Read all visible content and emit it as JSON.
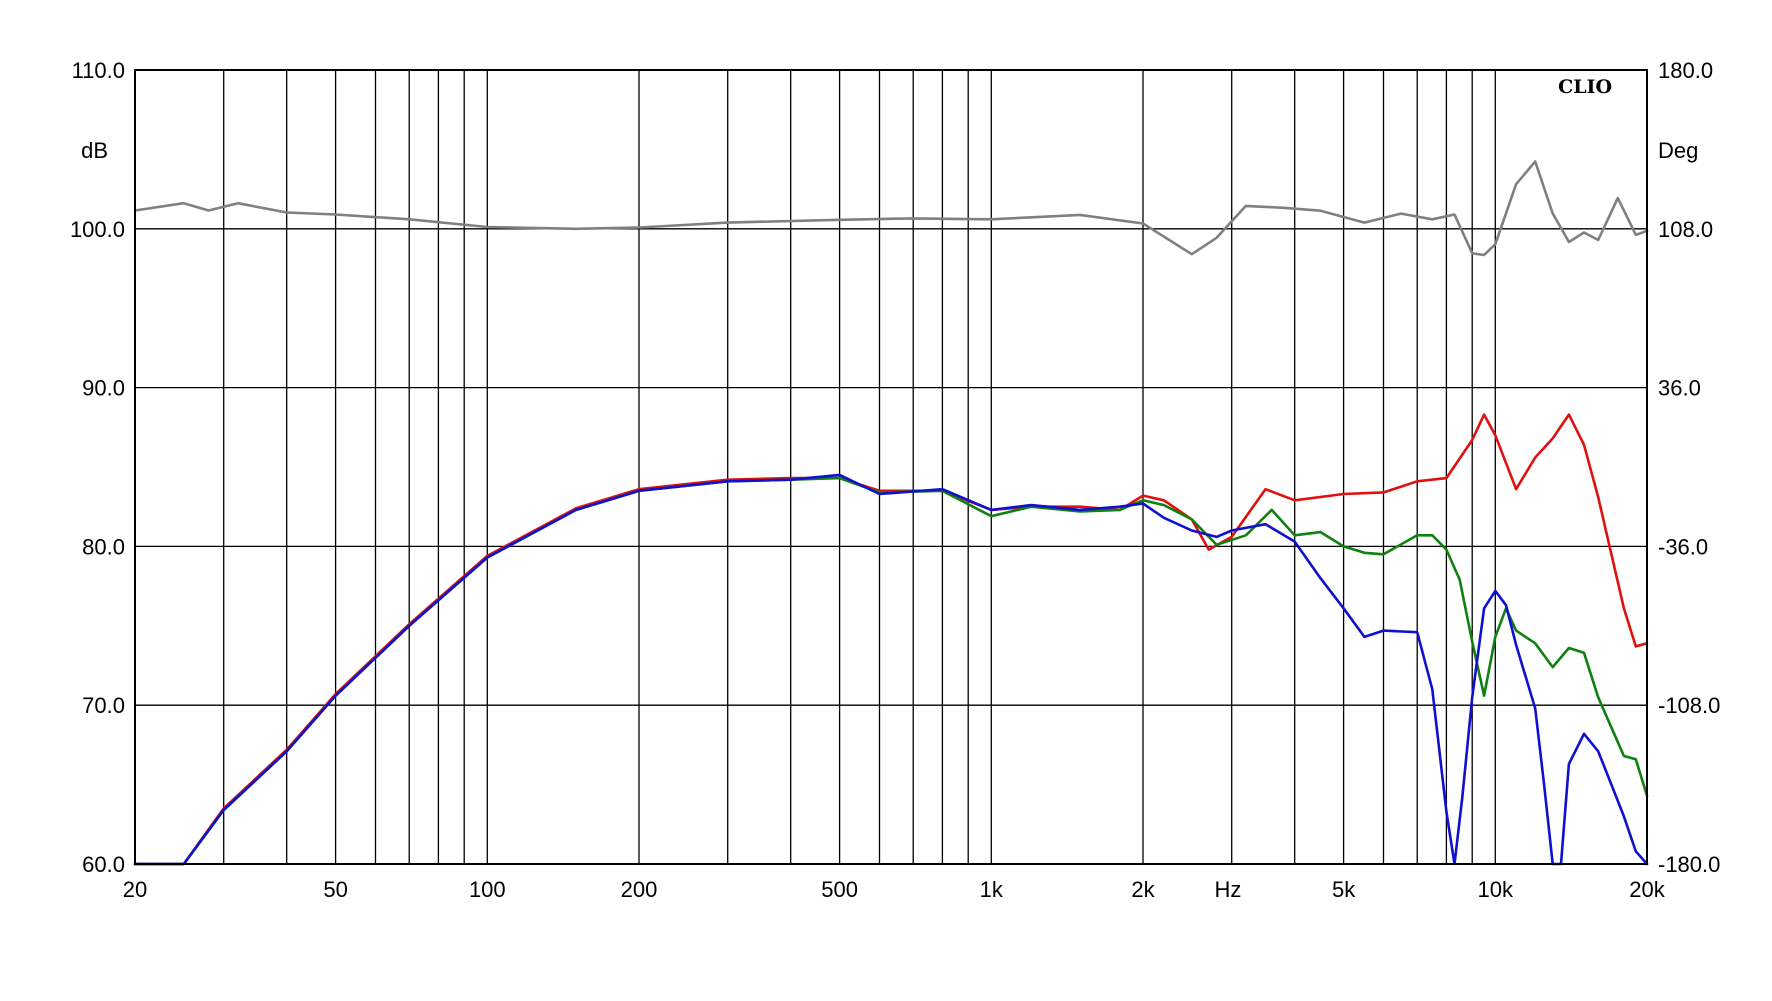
{
  "chart_data": {
    "type": "line",
    "brand": "CLIO",
    "x_scale": "log",
    "xlim": [
      20,
      20000
    ],
    "ylim": [
      60,
      110
    ],
    "y2lim": [
      -180,
      180
    ],
    "xlabel": "Hz",
    "ylabel": "dB",
    "y2label": "Deg",
    "x_tick_labels": [
      {
        "value": 20,
        "label": "20"
      },
      {
        "value": 50,
        "label": "50"
      },
      {
        "value": 100,
        "label": "100"
      },
      {
        "value": 200,
        "label": "200"
      },
      {
        "value": 500,
        "label": "500"
      },
      {
        "value": 1000,
        "label": "1k"
      },
      {
        "value": 2000,
        "label": "2k"
      },
      {
        "value": 5000,
        "label": "5k"
      },
      {
        "value": 10000,
        "label": "10k"
      },
      {
        "value": 20000,
        "label": "20k"
      }
    ],
    "x_gridlines": [
      30,
      40,
      50,
      60,
      70,
      80,
      90,
      100,
      200,
      300,
      400,
      500,
      600,
      700,
      800,
      900,
      1000,
      2000,
      3000,
      4000,
      5000,
      6000,
      7000,
      8000,
      9000,
      10000,
      20000
    ],
    "y_tick_labels": [
      "60.0",
      "70.0",
      "80.0",
      "90.0",
      "100.0",
      "110.0"
    ],
    "y2_tick_labels": [
      "-180.0",
      "-108.0",
      "-36.0",
      "36.0",
      "108.0",
      "180.0"
    ],
    "grid": true,
    "series": [
      {
        "color": "#808080",
        "axis": "right",
        "x": [
          20,
          25,
          28,
          32,
          40,
          50,
          70,
          100,
          150,
          200,
          300,
          500,
          700,
          1000,
          1500,
          2000,
          2500,
          2800,
          3200,
          3800,
          4500,
          5500,
          6500,
          7500,
          8300,
          9000,
          9500,
          10000,
          11000,
          12000,
          13000,
          14000,
          15000,
          16000,
          17500,
          19000,
          20000
        ],
        "y": [
          116.3,
          119.6,
          116.3,
          119.6,
          115.4,
          114.5,
          112.3,
          108.8,
          108.0,
          108.6,
          110.8,
          112.1,
          112.7,
          112.3,
          114.3,
          110.4,
          96.5,
          103.9,
          118.4,
          117.5,
          116.2,
          110.8,
          114.9,
          112.3,
          114.5,
          96.9,
          96.1,
          101.0,
          128.2,
          138.5,
          115.0,
          102.0,
          106.3,
          102.9,
          121.9,
          105.3,
          107.0
        ]
      },
      {
        "color": "#e01010",
        "axis": "left",
        "x": [
          20,
          25,
          30,
          40,
          50,
          70,
          100,
          150,
          200,
          300,
          400,
          500,
          600,
          800,
          1000,
          1200,
          1500,
          1800,
          2000,
          2200,
          2500,
          2700,
          3000,
          3500,
          4000,
          5000,
          6000,
          7000,
          8000,
          9000,
          9500,
          10000,
          11000,
          12000,
          13000,
          14000,
          15000,
          16000,
          17000,
          18000,
          19000,
          20000
        ],
        "y": [
          55.9,
          60.0,
          63.5,
          67.2,
          70.7,
          75.1,
          79.4,
          82.4,
          83.6,
          84.2,
          84.3,
          84.3,
          83.5,
          83.5,
          82.3,
          82.5,
          82.5,
          82.3,
          83.2,
          82.9,
          81.7,
          79.8,
          80.6,
          83.6,
          82.9,
          83.3,
          83.4,
          84.1,
          84.3,
          86.7,
          88.3,
          87.0,
          83.6,
          85.6,
          86.8,
          88.3,
          86.4,
          83.1,
          79.5,
          76.1,
          73.7,
          73.9
        ]
      },
      {
        "color": "#108010",
        "axis": "left",
        "x": [
          20,
          25,
          30,
          40,
          50,
          70,
          100,
          150,
          200,
          300,
          400,
          500,
          600,
          800,
          1000,
          1200,
          1500,
          1800,
          2000,
          2200,
          2500,
          2800,
          3200,
          3600,
          4000,
          4500,
          5000,
          5500,
          6000,
          7000,
          7500,
          8000,
          8500,
          9000,
          9500,
          10000,
          10500,
          11000,
          12000,
          13000,
          14000,
          15000,
          16000,
          18000,
          19000,
          20000
        ],
        "y": [
          55.9,
          60.0,
          63.4,
          67.1,
          70.6,
          75.0,
          79.3,
          82.3,
          83.5,
          84.1,
          84.2,
          84.3,
          83.4,
          83.5,
          81.9,
          82.5,
          82.2,
          82.3,
          82.9,
          82.6,
          81.7,
          80.1,
          80.7,
          82.3,
          80.7,
          80.9,
          80.0,
          79.6,
          79.5,
          80.7,
          80.7,
          79.8,
          77.9,
          74.0,
          70.6,
          74.3,
          76.1,
          74.7,
          73.9,
          72.4,
          73.6,
          73.3,
          70.5,
          66.8,
          66.6,
          64.3
        ]
      },
      {
        "color": "#1010d0",
        "axis": "left",
        "x": [
          20,
          25,
          30,
          40,
          50,
          70,
          100,
          150,
          200,
          300,
          400,
          500,
          600,
          800,
          1000,
          1200,
          1500,
          1800,
          2000,
          2200,
          2500,
          2800,
          3000,
          3500,
          4000,
          4500,
          5000,
          5500,
          6000,
          7000,
          7500,
          8000,
          8300,
          8600,
          9000,
          9500,
          10000,
          10500,
          11000,
          12000,
          12500,
          13000,
          13500,
          14000,
          15000,
          16000,
          17000,
          18000,
          19000,
          20000
        ],
        "y": [
          55.8,
          60.0,
          63.4,
          67.1,
          70.6,
          75.0,
          79.3,
          82.3,
          83.5,
          84.1,
          84.2,
          84.5,
          83.3,
          83.6,
          82.3,
          82.6,
          82.3,
          82.5,
          82.7,
          81.8,
          81.0,
          80.6,
          81.0,
          81.4,
          80.3,
          78.0,
          76.1,
          74.3,
          74.7,
          74.6,
          71.0,
          63.3,
          58.9,
          64.2,
          70.5,
          76.1,
          77.2,
          76.3,
          73.8,
          69.8,
          65.0,
          59.7,
          59.8,
          66.3,
          68.2,
          67.1,
          65.0,
          63.0,
          60.8,
          59.5
        ]
      }
    ]
  }
}
